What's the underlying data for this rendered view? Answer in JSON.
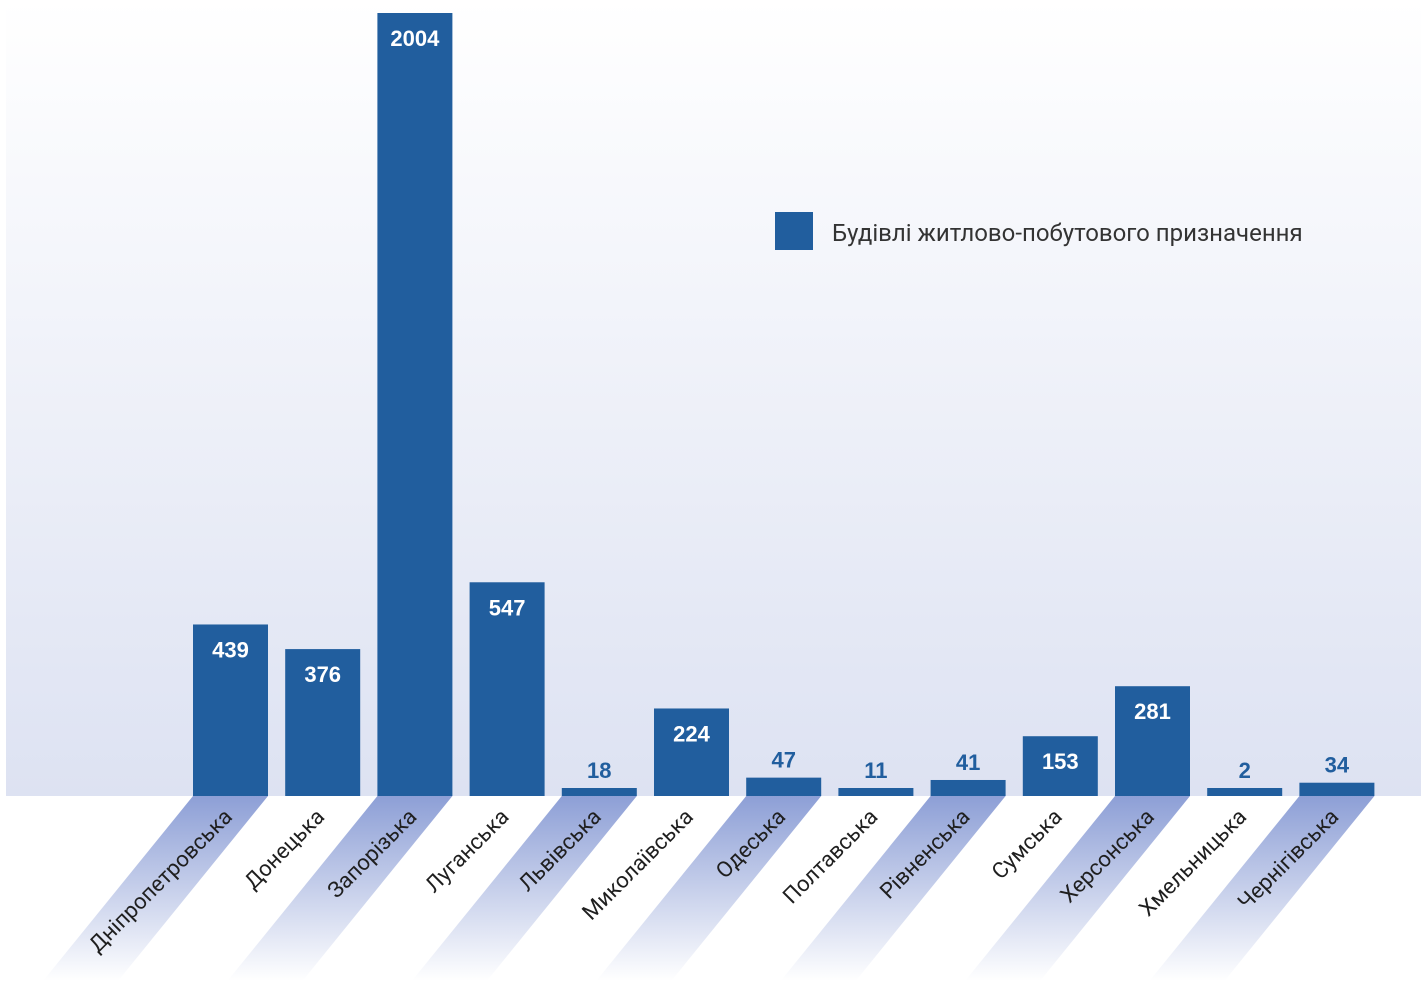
{
  "colors": {
    "bar": "#215E9E",
    "label_inside": "#ffffff",
    "label_outside": "#215E9E",
    "tick_text": "#1f1f1f",
    "plot_bg_top": "#ffffff",
    "plot_bg_bottom": "#DDE2F2",
    "tick_band": "#8D9FD6"
  },
  "chart_data": {
    "type": "bar",
    "title": "",
    "xlabel": "",
    "ylabel": "",
    "ylim": [
      0,
      2004
    ],
    "grid": false,
    "legend_position": "top-right",
    "categories": [
      "Дніпропетровська",
      "Донецька",
      "Запорізька",
      "Луганська",
      "Львівська",
      "Миколаївська",
      "Одеська",
      "Полтавська",
      "Рівненська",
      "Сумська",
      "Херсонська",
      "Хмельницька",
      "Чернігівська"
    ],
    "series": [
      {
        "name": "Будівлі житлово-побутового призначення",
        "values": [
          439,
          376,
          2004,
          547,
          18,
          224,
          47,
          11,
          41,
          153,
          281,
          2,
          34
        ]
      }
    ],
    "highlighted_ticks": [
      "Дніпропетровська",
      "Запорізька",
      "Львівська",
      "Одеська",
      "Рівненська",
      "Херсонська",
      "Чернігівська"
    ]
  }
}
